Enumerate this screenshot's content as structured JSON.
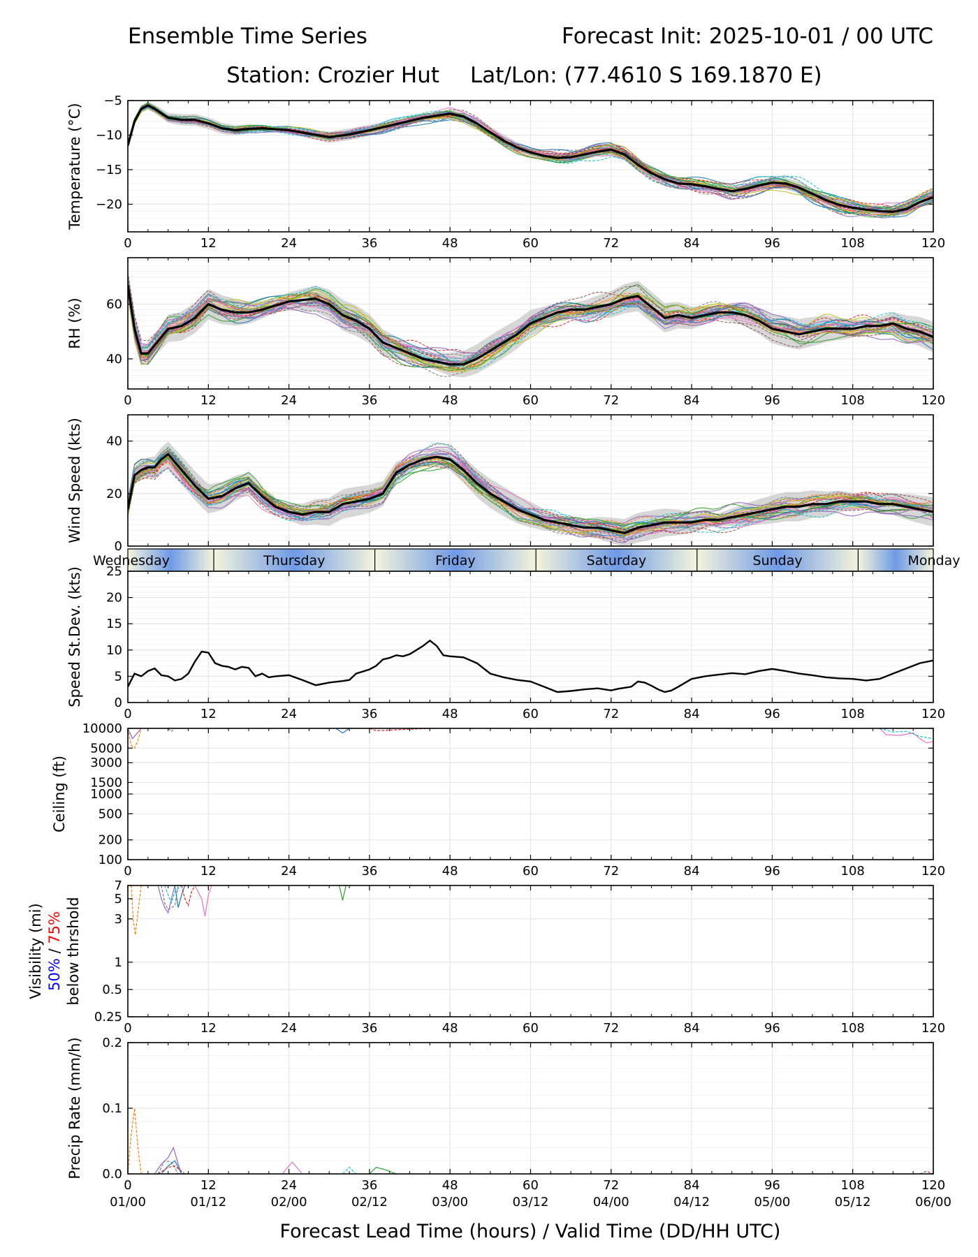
{
  "header": {
    "title_left": "Ensemble Time Series",
    "title_right": "Forecast Init: 2025-10-01 / 00 UTC",
    "station": "Station: Crozier Hut",
    "latlon": "Lat/Lon: (77.4610 S 169.1870 E)"
  },
  "xaxis": {
    "ticks": [
      0,
      12,
      24,
      36,
      48,
      60,
      72,
      84,
      96,
      108,
      120
    ],
    "tick_labels": [
      "0",
      "12",
      "24",
      "36",
      "48",
      "60",
      "72",
      "84",
      "96",
      "108",
      "120"
    ],
    "valid_labels": [
      "01/00",
      "01/12",
      "02/00",
      "02/12",
      "03/00",
      "03/12",
      "04/00",
      "04/12",
      "05/00",
      "05/12",
      "06/00"
    ],
    "label": "Forecast Lead Time (hours) / Valid Time (DD/HH UTC)",
    "range": [
      0,
      120
    ]
  },
  "days": [
    "Wednesday",
    "Thursday",
    "Friday",
    "Saturday",
    "Sunday",
    "Monday"
  ],
  "colors": {
    "members": [
      "#1f77b4",
      "#ff7f0e",
      "#2ca02c",
      "#d62728",
      "#9467bd",
      "#8c564b",
      "#e377c2",
      "#7f7f7f",
      "#bcbd22",
      "#17becf"
    ],
    "mean": "#000000",
    "spread": "#bdbdbd",
    "grid": "#e6e6e6",
    "band_dark": "#6f9ae6",
    "band_light": "#f4f4dc",
    "vis50": "#0000ff",
    "vis75": "#ff0000"
  },
  "chart_data": [
    {
      "type": "line",
      "id": "temperature",
      "ylabel": "Temperature (°C)",
      "ylim": [
        -24,
        -5
      ],
      "yticks": [
        -5,
        -10,
        -15,
        -20
      ],
      "ytick_labels": [
        "−5",
        "−10",
        "−15",
        "−20"
      ],
      "ensemble_members": 30,
      "spread": 0.6,
      "mean": {
        "x": [
          0,
          1,
          2,
          3,
          4,
          6,
          8,
          10,
          12,
          14,
          16,
          18,
          20,
          24,
          27,
          30,
          33,
          36,
          40,
          44,
          48,
          50,
          52,
          54,
          56,
          58,
          60,
          62,
          64,
          66,
          68,
          70,
          72,
          74,
          76,
          78,
          80,
          82,
          84,
          86,
          88,
          90,
          92,
          94,
          96,
          98,
          100,
          102,
          104,
          106,
          108,
          110,
          112,
          114,
          116,
          118,
          120
        ],
        "y": [
          -11.5,
          -8,
          -6.2,
          -5.7,
          -6.2,
          -7.5,
          -7.8,
          -7.8,
          -8.3,
          -9.0,
          -9.3,
          -9.1,
          -9.0,
          -9.3,
          -9.8,
          -10.3,
          -9.9,
          -9.3,
          -8.4,
          -7.5,
          -6.9,
          -7.3,
          -8.3,
          -9.6,
          -10.8,
          -11.8,
          -12.5,
          -13.0,
          -13.3,
          -13.2,
          -12.8,
          -12.4,
          -12.1,
          -12.8,
          -14.3,
          -15.5,
          -16.4,
          -17.0,
          -17.1,
          -17.4,
          -17.8,
          -18.1,
          -17.8,
          -17.3,
          -16.9,
          -17.0,
          -17.6,
          -18.5,
          -19.4,
          -20.1,
          -20.5,
          -20.8,
          -21.0,
          -21.1,
          -20.7,
          -19.7,
          -19.0
        ]
      }
    },
    {
      "type": "line",
      "id": "rh",
      "ylabel": "RH (%)",
      "ylim": [
        29,
        77
      ],
      "yticks": [
        40,
        60
      ],
      "ytick_labels": [
        "40",
        "60"
      ],
      "ensemble_members": 30,
      "spread": 4,
      "mean": {
        "x": [
          0,
          1,
          2,
          3,
          4,
          6,
          8,
          10,
          12,
          14,
          16,
          18,
          20,
          24,
          28,
          30,
          32,
          34,
          36,
          38,
          40,
          42,
          44,
          46,
          48,
          50,
          52,
          54,
          56,
          58,
          60,
          62,
          64,
          66,
          68,
          70,
          72,
          74,
          76,
          78,
          80,
          82,
          84,
          86,
          88,
          90,
          92,
          94,
          96,
          98,
          100,
          102,
          104,
          106,
          108,
          110,
          112,
          114,
          116,
          118,
          120
        ],
        "y": [
          67,
          51,
          42,
          42,
          45,
          51,
          52,
          55,
          60,
          58,
          57,
          57,
          58,
          61,
          62,
          60,
          56,
          54,
          51,
          46,
          44,
          42,
          40,
          39,
          38,
          38,
          40,
          43,
          46,
          49,
          53,
          55,
          57,
          58,
          58,
          59,
          60,
          62,
          63,
          59,
          55,
          56,
          55,
          56,
          57,
          57,
          56,
          54,
          51,
          50,
          49,
          50,
          51,
          51,
          51,
          52,
          52,
          53,
          51,
          50,
          48
        ]
      }
    },
    {
      "type": "line",
      "id": "wind",
      "ylabel": "Wind Speed (kts)",
      "ylim": [
        0,
        50
      ],
      "yticks": [
        0,
        20,
        40
      ],
      "ytick_labels": [
        "0",
        "20",
        "40"
      ],
      "ensemble_members": 30,
      "spread": 4,
      "mean": {
        "x": [
          0,
          1,
          2,
          3,
          4,
          5,
          6,
          7,
          8,
          10,
          12,
          14,
          16,
          18,
          20,
          22,
          24,
          26,
          28,
          30,
          32,
          34,
          36,
          38,
          40,
          42,
          44,
          46,
          48,
          50,
          52,
          54,
          56,
          58,
          60,
          62,
          64,
          66,
          68,
          70,
          72,
          74,
          76,
          78,
          80,
          82,
          84,
          86,
          88,
          90,
          92,
          94,
          96,
          98,
          100,
          102,
          104,
          106,
          108,
          110,
          112,
          114,
          116,
          118,
          120
        ],
        "y": [
          14,
          27,
          29,
          30,
          30,
          33,
          35,
          32,
          29,
          23,
          18,
          19,
          22,
          24,
          19,
          15,
          13,
          12,
          13,
          13,
          16,
          17,
          18,
          20,
          28,
          31,
          33,
          34,
          33,
          29,
          24,
          20,
          17,
          14,
          12,
          10,
          9,
          8,
          7,
          7,
          6,
          5,
          7,
          8,
          9,
          9,
          9,
          10,
          10,
          11,
          12,
          13,
          14,
          15,
          15,
          16,
          16,
          17,
          17,
          17,
          16,
          16,
          15,
          14,
          13
        ]
      }
    },
    {
      "type": "line",
      "id": "speed_stdev",
      "ylabel": "Speed St.Dev. (kts)",
      "ylim": [
        0,
        25
      ],
      "yticks": [
        0,
        5,
        10,
        15,
        20,
        25
      ],
      "ytick_labels": [
        "0",
        "5",
        "10",
        "15",
        "20",
        "25"
      ],
      "series": {
        "x": [
          0,
          1,
          2,
          3,
          4,
          5,
          6,
          7,
          8,
          9,
          10,
          11,
          12,
          13,
          14,
          15,
          16,
          17,
          18,
          19,
          20,
          21,
          22,
          24,
          26,
          28,
          30,
          32,
          33,
          34,
          36,
          37,
          38,
          39,
          40,
          41,
          42,
          43,
          44,
          45,
          46,
          47,
          48,
          50,
          52,
          54,
          56,
          58,
          60,
          62,
          64,
          66,
          68,
          70,
          72,
          73,
          74,
          75,
          76,
          77,
          78,
          79,
          80,
          81,
          82,
          84,
          86,
          88,
          90,
          92,
          94,
          96,
          98,
          100,
          102,
          104,
          106,
          108,
          110,
          112,
          114,
          116,
          118,
          120
        ],
        "y": [
          3,
          5.5,
          5,
          6,
          6.5,
          5.2,
          5.0,
          4.2,
          4.5,
          5.5,
          7.8,
          9.7,
          9.5,
          7.5,
          7.0,
          6.8,
          6.3,
          6.8,
          6.6,
          5.0,
          5.5,
          4.8,
          5.0,
          5.2,
          4.3,
          3.3,
          3.8,
          4.1,
          4.3,
          5.5,
          6.3,
          7.0,
          8.2,
          8.5,
          9.0,
          8.8,
          9.2,
          10.0,
          10.8,
          11.8,
          10.8,
          9.0,
          8.8,
          8.6,
          7.5,
          5.5,
          4.8,
          4.3,
          4.0,
          3.0,
          2.0,
          2.2,
          2.5,
          2.7,
          2.3,
          2.6,
          2.8,
          3.0,
          4.0,
          3.8,
          3.2,
          2.5,
          2.0,
          2.3,
          3.0,
          4.5,
          5.0,
          5.3,
          5.6,
          5.4,
          6.0,
          6.4,
          6.0,
          5.5,
          5.2,
          4.8,
          4.6,
          4.5,
          4.2,
          4.5,
          5.5,
          6.5,
          7.5,
          8.0
        ]
      }
    },
    {
      "type": "line",
      "id": "ceiling",
      "ylabel": "Ceiling (ft)",
      "scale": "log",
      "ylim": [
        100,
        10000
      ],
      "yticks": [
        100,
        200,
        500,
        1000,
        1500,
        3000,
        5000,
        10000
      ],
      "ytick_labels": [
        "100",
        "200",
        "500",
        "1000",
        "1500",
        "3000",
        "5000",
        "10000"
      ],
      "traces": [
        {
          "x": [
            0,
            0.5,
            1,
            1.5,
            2
          ],
          "y": [
            10000,
            5500,
            5000,
            6500,
            10000
          ]
        },
        {
          "x": [
            0,
            0.7,
            1.2,
            2
          ],
          "y": [
            10000,
            7000,
            8000,
            10000
          ]
        },
        {
          "x": [
            6,
            6.5,
            7
          ],
          "y": [
            10000,
            9000,
            10000
          ]
        },
        {
          "x": [
            31,
            32,
            33
          ],
          "y": [
            10000,
            8500,
            10000
          ]
        },
        {
          "x": [
            36,
            37,
            40,
            43,
            46
          ],
          "y": [
            10000,
            9200,
            9500,
            9800,
            10000
          ]
        },
        {
          "x": [
            112,
            113,
            115,
            117,
            118,
            119,
            120
          ],
          "y": [
            10000,
            8000,
            7800,
            8500,
            7000,
            6000,
            6300
          ]
        },
        {
          "x": [
            112,
            114,
            116,
            118,
            120
          ],
          "y": [
            10000,
            8800,
            9000,
            7500,
            7000
          ]
        }
      ]
    },
    {
      "type": "line",
      "id": "visibility",
      "ylabel": "Visibility (mi)",
      "ylabel2_50": "50%",
      "ylabel2_sep": " / ",
      "ylabel2_75": "75%",
      "ylabel3": "below thrshold",
      "scale": "log",
      "ylim": [
        0.25,
        7
      ],
      "yticks": [
        0.25,
        0.5,
        1,
        3,
        5,
        7
      ],
      "ytick_labels": [
        "0.25",
        "0.5",
        "1",
        "3",
        "5",
        "7"
      ],
      "traces": [
        {
          "x": [
            0.5,
            0.8,
            1.1,
            1.5,
            2
          ],
          "y": [
            7,
            3,
            2.0,
            3.5,
            7
          ]
        },
        {
          "x": [
            4.5,
            5,
            5.5,
            6,
            6.5,
            7
          ],
          "y": [
            7,
            5,
            4,
            3.5,
            5,
            7
          ]
        },
        {
          "x": [
            5,
            5.5,
            6,
            7,
            7.5
          ],
          "y": [
            7,
            4.5,
            3.8,
            4.2,
            7
          ]
        },
        {
          "x": [
            7,
            7.5,
            8,
            8.5
          ],
          "y": [
            7,
            4.0,
            5.5,
            7
          ]
        },
        {
          "x": [
            8,
            8.5,
            9,
            9.5,
            10
          ],
          "y": [
            7,
            5,
            4.2,
            6,
            7
          ]
        },
        {
          "x": [
            10,
            11,
            11.5,
            12,
            12.5
          ],
          "y": [
            7,
            5,
            3.2,
            5.5,
            7
          ]
        },
        {
          "x": [
            5.5,
            6,
            6.5,
            7,
            8
          ],
          "y": [
            7,
            5.5,
            4.5,
            6,
            7
          ]
        },
        {
          "x": [
            31.5,
            32,
            32.5
          ],
          "y": [
            7,
            4.8,
            7
          ]
        }
      ]
    },
    {
      "type": "line",
      "id": "precip",
      "ylabel": "Precip Rate (mm/h)",
      "ylim": [
        0,
        0.2
      ],
      "yticks": [
        0.0,
        0.1,
        0.2
      ],
      "ytick_labels": [
        "0.0",
        "0.1",
        "0.2"
      ],
      "traces": [
        {
          "x": [
            0,
            0.5,
            1,
            1.5,
            2
          ],
          "y": [
            0.0,
            0.06,
            0.1,
            0.04,
            0.0
          ]
        },
        {
          "x": [
            4,
            5,
            6,
            6.8,
            7.5,
            8
          ],
          "y": [
            0.0,
            0.015,
            0.025,
            0.04,
            0.015,
            0.0
          ]
        },
        {
          "x": [
            4.5,
            5.5,
            6.5,
            7.5
          ],
          "y": [
            0.0,
            0.02,
            0.018,
            0.0
          ]
        },
        {
          "x": [
            5,
            6,
            7,
            8
          ],
          "y": [
            0.0,
            0.012,
            0.02,
            0.0
          ]
        },
        {
          "x": [
            4.5,
            6,
            7,
            8.5
          ],
          "y": [
            0.0,
            0.01,
            0.012,
            0.0
          ]
        },
        {
          "x": [
            23,
            24.5,
            26
          ],
          "y": [
            0.0,
            0.018,
            0.0
          ]
        },
        {
          "x": [
            32,
            33,
            34
          ],
          "y": [
            0.0,
            0.01,
            0.0
          ]
        },
        {
          "x": [
            36,
            37,
            38.5,
            40
          ],
          "y": [
            0.0,
            0.01,
            0.006,
            0.0
          ]
        },
        {
          "x": [
            118,
            119,
            120
          ],
          "y": [
            0.0,
            0.004,
            0.0
          ]
        }
      ]
    }
  ]
}
